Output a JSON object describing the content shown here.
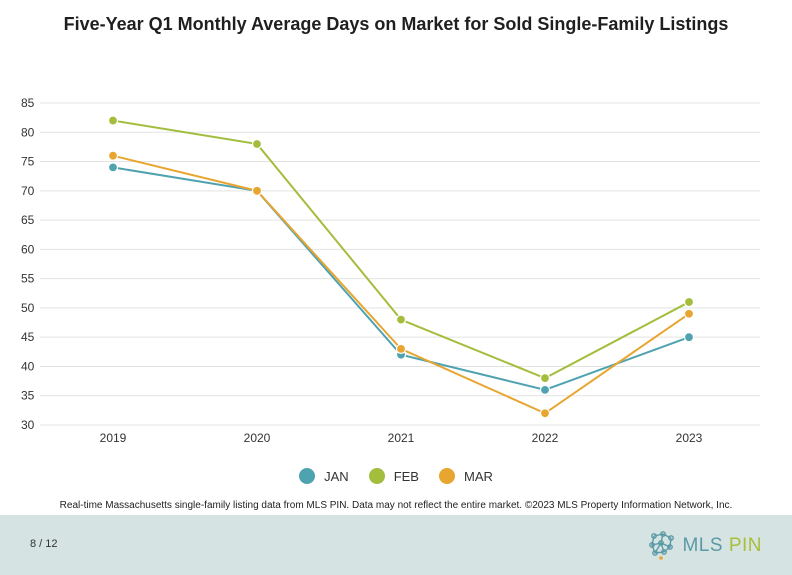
{
  "chart_data": {
    "type": "line",
    "title": "Five-Year Q1 Monthly Average Days on Market for Sold Single-Family Listings",
    "xlabel": "",
    "ylabel": "",
    "categories": [
      "2019",
      "2020",
      "2021",
      "2022",
      "2023"
    ],
    "ylim": [
      30,
      85
    ],
    "yticks": [
      30,
      35,
      40,
      45,
      50,
      55,
      60,
      65,
      70,
      75,
      80,
      85
    ],
    "grid": true,
    "legend_position": "bottom",
    "series": [
      {
        "name": "JAN",
        "color": "#4fa3b0",
        "values": [
          74,
          70,
          42,
          36,
          45
        ]
      },
      {
        "name": "FEB",
        "color": "#a3bd3c",
        "values": [
          82,
          78,
          48,
          38,
          51
        ]
      },
      {
        "name": "MAR",
        "color": "#e8a530",
        "values": [
          76,
          70,
          43,
          32,
          49
        ]
      }
    ]
  },
  "source_note": "Real-time Massachusetts single-family listing data from MLS PIN. Data may not reflect the entire market. ©2023 MLS Property Information Network, Inc.",
  "footer": {
    "page": "8 / 12",
    "logo_mls": "MLS",
    "logo_pin": "PIN"
  }
}
